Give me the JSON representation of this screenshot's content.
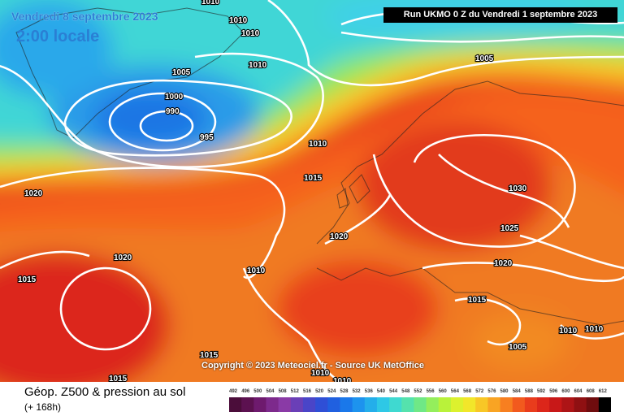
{
  "header": {
    "valid_date": "Vendredi 8 septembre 2023",
    "local_time": "2:00 locale",
    "run_info": "Run UKMO 0 Z du Vendredi 1 septembre 2023"
  },
  "copyright": "Copyright © 2023 Meteociel.fr - Source UK MetOffice",
  "product": {
    "title": "Géop. Z500 & pression au sol",
    "lead": "(+ 168h)"
  },
  "isobar_labels": [
    "1010",
    "1010",
    "1010",
    "1010",
    "1005",
    "1000",
    "990",
    "995",
    "1010",
    "1010",
    "1015",
    "1020",
    "1020",
    "1020",
    "1010",
    "1015",
    "1030",
    "1025",
    "1020",
    "1015",
    "1005",
    "1010",
    "1010",
    "1015",
    "1015",
    "1010",
    "1005"
  ],
  "scale_labels": [
    "492",
    "496",
    "500",
    "504",
    "508",
    "512",
    "516",
    "520",
    "524",
    "528",
    "532",
    "536",
    "540",
    "544",
    "548",
    "552",
    "556",
    "560",
    "564",
    "568",
    "572",
    "576",
    "580",
    "584",
    "588",
    "592",
    "596",
    "600",
    "604",
    "608",
    "612"
  ],
  "scale_colors": [
    "#4b0d3a",
    "#5c1150",
    "#6e1a6e",
    "#7d2a8c",
    "#8a3aa6",
    "#6a3fb7",
    "#4a45c8",
    "#2f4fd6",
    "#2060e0",
    "#1a78ea",
    "#1d93ee",
    "#24aeea",
    "#2ec8e6",
    "#3fd9d0",
    "#55e2ad",
    "#6fe886",
    "#94ee5c",
    "#b9f23a",
    "#dcf12e",
    "#f2e62a",
    "#f8c726",
    "#f9a423",
    "#f77f20",
    "#f25a1e",
    "#e93c1c",
    "#dc261a",
    "#c81818",
    "#ad1416",
    "#8f1012",
    "#6f0c0e",
    "#000000"
  ]
}
